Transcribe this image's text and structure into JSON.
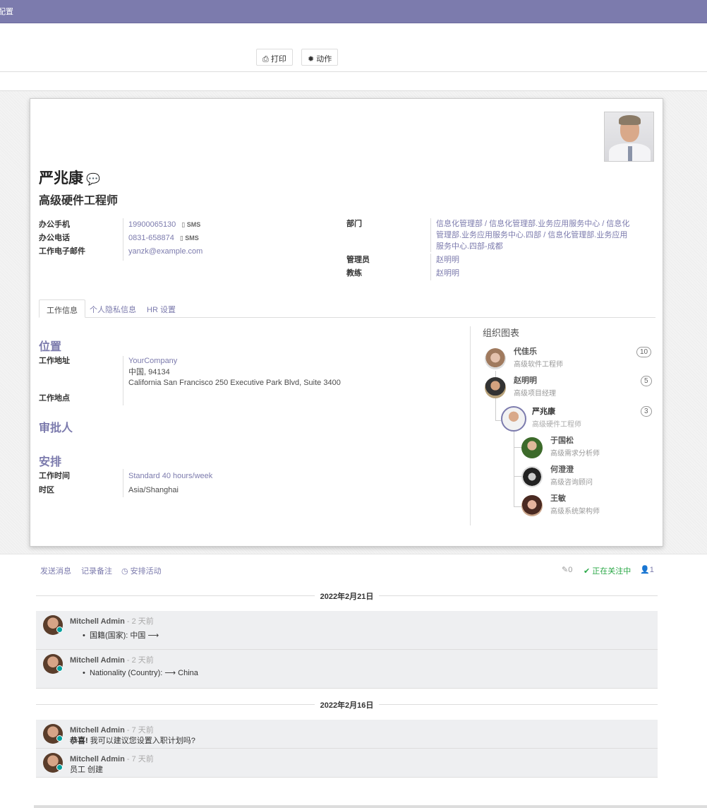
{
  "topbar": {
    "title": "配置"
  },
  "toolbar": {
    "print": "打印",
    "action": "动作",
    "print_icon": "print-icon",
    "action_icon": "gear-icon"
  },
  "employee": {
    "name": "严兆康",
    "job_title": "高级硬件工程师"
  },
  "fields_left": [
    {
      "label": "办公手机",
      "value": "19900065130",
      "sms": "SMS"
    },
    {
      "label": "办公电话",
      "value": "0831-658874",
      "sms": "SMS"
    },
    {
      "label": "工作电子邮件",
      "value": "yanzk@example.com"
    }
  ],
  "fields_right": [
    {
      "label": "部门",
      "value": "信息化管理部 / 信息化管理部.业务应用服务中心 / 信息化管理部.业务应用服务中心.四部 / 信息化管理部.业务应用服务中心.四部-成都"
    },
    {
      "label": "管理员",
      "value": "赵明明"
    },
    {
      "label": "教练",
      "value": "赵明明"
    }
  ],
  "tabs": [
    "工作信息",
    "个人隐私信息",
    "HR 设置"
  ],
  "work": {
    "location_title": "位置",
    "address_label": "工作地址",
    "address": [
      "YourCompany",
      "中国, 94134",
      "California San Francisco 250 Executive Park Blvd, Suite 3400"
    ],
    "worklocation_label": "工作地点",
    "approvers_title": "审批人",
    "schedule_title": "安排",
    "hours_label": "工作时间",
    "hours": "Standard 40 hours/week",
    "tz_label": "时区",
    "tz": "Asia/Shanghai"
  },
  "org": {
    "title": "组织图表",
    "managers": [
      {
        "name": "代佳乐",
        "job": "高级软件工程师",
        "count": "10"
      },
      {
        "name": "赵明明",
        "job": "高级项目经理",
        "count": "5"
      }
    ],
    "self": {
      "name": "严兆康",
      "job": "高级硬件工程师",
      "count": "3"
    },
    "subordinates": [
      {
        "name": "于国松",
        "job": "高级需求分析师"
      },
      {
        "name": "何澄澄",
        "job": "高级咨询顾问"
      },
      {
        "name": "王敏",
        "job": "高级系统架构师"
      }
    ]
  },
  "chatter": {
    "send": "发送消息",
    "log": "记录备注",
    "activity": "安排活动",
    "attachments": "0",
    "following": "正在关注中",
    "followers": "1",
    "accent": "#7c7bad",
    "following_color": "#28a745",
    "groups": [
      {
        "date": "2022年2月21日",
        "messages": [
          {
            "author": "Mitchell Admin",
            "ago": "- 2 天前",
            "text": "国籍(国家): 中国 ⟶"
          },
          {
            "author": "Mitchell Admin",
            "ago": "- 2 天前",
            "text": "Nationality (Country): ⟶ China"
          }
        ]
      },
      {
        "date": "2022年2月16日",
        "messages": [
          {
            "author": "Mitchell Admin",
            "ago": "- 7 天前",
            "strong": "恭喜!",
            "text": "我可以建议您设置入职计划吗?"
          },
          {
            "author": "Mitchell Admin",
            "ago": "- 7 天前",
            "text": "员工 创建"
          }
        ]
      }
    ]
  }
}
